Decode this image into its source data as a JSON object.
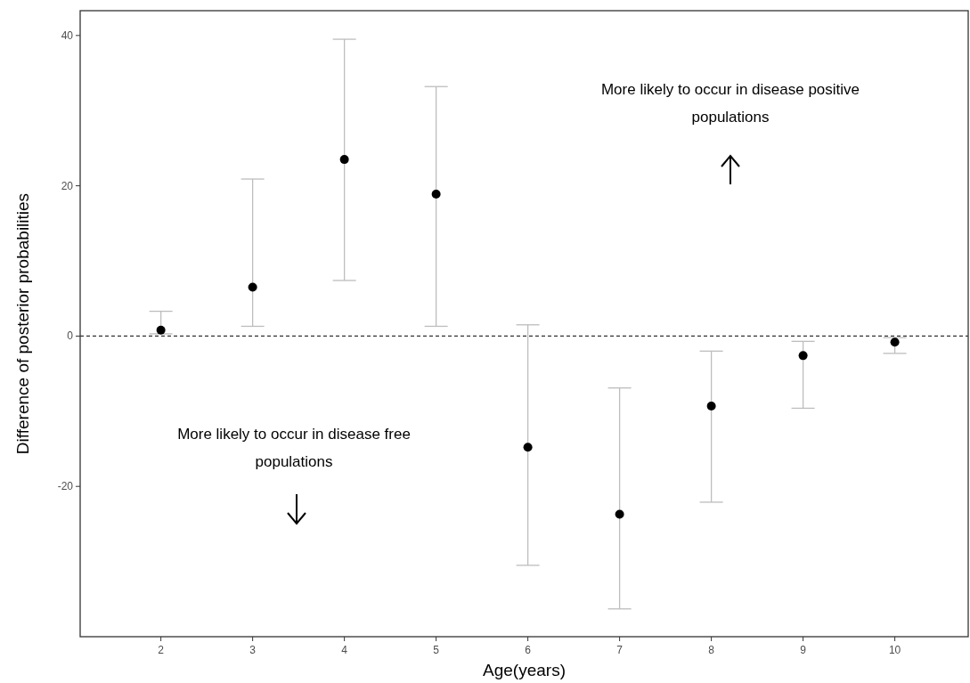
{
  "chart_data": {
    "type": "scatter",
    "xlabel": "Age(years)",
    "ylabel": "Difference of posterior probabilities",
    "x": [
      2,
      3,
      4,
      5,
      6,
      7,
      8,
      9,
      10
    ],
    "values": [
      0.8,
      6.5,
      23.5,
      18.9,
      -14.8,
      -23.7,
      -9.3,
      -2.6,
      -0.8
    ],
    "errors": [
      [
        0.3,
        3.3
      ],
      [
        1.3,
        20.9
      ],
      [
        7.4,
        39.5
      ],
      [
        1.3,
        33.2
      ],
      [
        -30.5,
        1.5
      ],
      [
        -36.3,
        -6.9
      ],
      [
        -22.1,
        -2.0
      ],
      [
        -9.6,
        -0.7
      ],
      [
        -2.3,
        -0.2
      ]
    ],
    "color": "#000000",
    "marker": "circle",
    "xlim": [
      1.12,
      10.8
    ],
    "xticks": [
      2,
      3,
      4,
      5,
      6,
      7,
      8,
      9,
      10
    ],
    "ylim": [
      -40,
      43.3
    ],
    "yticks": [
      -20,
      0,
      20,
      40
    ],
    "grid": false,
    "ref_lines": [
      {
        "axis": "y",
        "value": 0,
        "line_style": "dashed",
        "color": "#333333"
      }
    ],
    "annotations": [
      "More likely to occur in disease positive populations",
      "More likely to occur in disease free populations"
    ]
  }
}
